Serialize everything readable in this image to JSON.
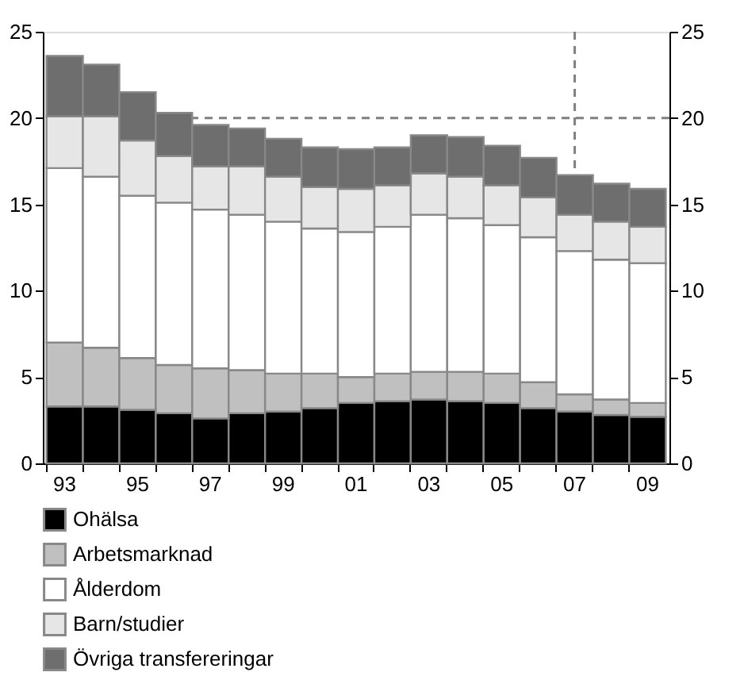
{
  "chart_data": {
    "type": "bar",
    "stacked": true,
    "categories": [
      "93",
      null,
      "95",
      null,
      "97",
      null,
      "99",
      null,
      "01",
      null,
      "03",
      null,
      "05",
      null,
      "07",
      null,
      "09"
    ],
    "series": [
      {
        "name": "Ohälsa",
        "color": "#000000",
        "values": [
          3.3,
          3.3,
          3.1,
          2.9,
          2.6,
          2.9,
          3.0,
          3.2,
          3.5,
          3.6,
          3.7,
          3.6,
          3.5,
          3.2,
          3.0,
          2.8,
          2.7
        ]
      },
      {
        "name": "Arbetsmarknad",
        "color": "#c0c0c0",
        "values": [
          3.7,
          3.4,
          3.0,
          2.8,
          2.9,
          2.5,
          2.2,
          2.0,
          1.5,
          1.6,
          1.6,
          1.7,
          1.7,
          1.5,
          1.0,
          0.9,
          0.8
        ]
      },
      {
        "name": "Ålderdom",
        "color": "#ffffff",
        "values": [
          10.1,
          9.9,
          9.4,
          9.4,
          9.2,
          9.0,
          8.8,
          8.4,
          8.4,
          8.5,
          9.1,
          8.9,
          8.6,
          8.4,
          8.3,
          8.1,
          8.1
        ]
      },
      {
        "name": "Barn/studier",
        "color": "#e6e6e6",
        "values": [
          3.0,
          3.5,
          3.2,
          2.7,
          2.5,
          2.8,
          2.6,
          2.4,
          2.5,
          2.4,
          2.4,
          2.4,
          2.3,
          2.3,
          2.1,
          2.2,
          2.1
        ]
      },
      {
        "name": "Övriga transfereringar",
        "color": "#6e6e6e",
        "values": [
          3.5,
          3.0,
          2.8,
          2.5,
          2.4,
          2.2,
          2.2,
          2.3,
          2.3,
          2.2,
          2.2,
          2.3,
          2.3,
          2.3,
          2.3,
          2.2,
          2.2
        ]
      }
    ],
    "ylim": [
      0,
      25
    ],
    "yticks": [
      0,
      5,
      10,
      15,
      20,
      25
    ],
    "y2lim": [
      0,
      25
    ],
    "y2ticks": [
      0,
      5,
      10,
      15,
      20,
      25
    ],
    "ref_lines": [
      {
        "axis": "y",
        "value": 20,
        "color": "#808080",
        "line_style": "dashed"
      },
      {
        "axis": "x",
        "value": "07",
        "color": "#808080",
        "line_style": "dashed"
      }
    ],
    "grid": false,
    "legend": "bottom"
  }
}
